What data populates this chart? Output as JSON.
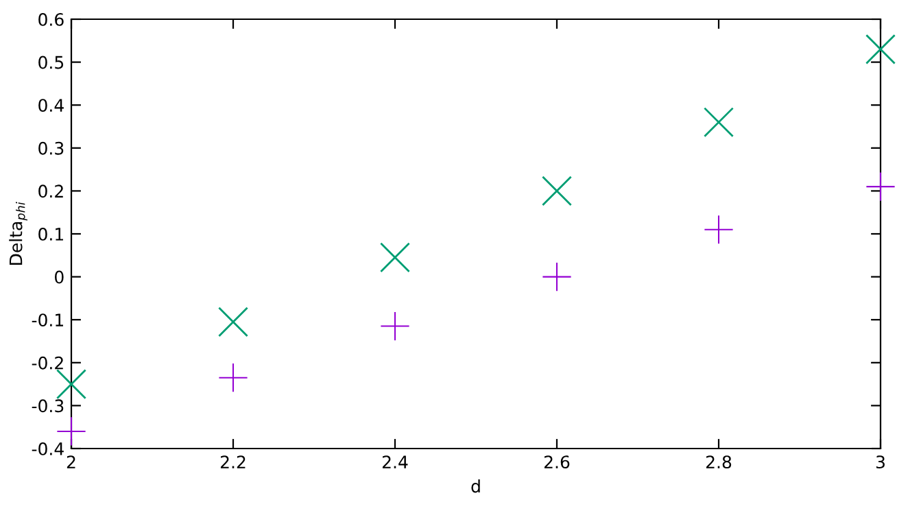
{
  "chart_data": {
    "type": "scatter",
    "xlabel": "d",
    "ylabel": "Delta$_{phi}$",
    "x": [
      2,
      2.2,
      2.4,
      2.6,
      2.8,
      3
    ],
    "series": [
      {
        "color": "#9400d3",
        "values": [
          -0.36,
          -0.235,
          -0.115,
          0.0,
          0.11,
          0.21
        ]
      },
      {
        "color": "#009e73",
        "marker": "cross",
        "values": [
          -0.25,
          -0.105,
          0.045,
          0.2,
          0.36,
          0.53
        ]
      }
    ],
    "xlim": [
      2,
      3
    ],
    "xticks": [
      2,
      2.2,
      2.4,
      2.6,
      2.8,
      3
    ],
    "ylim": [
      -0.4,
      0.6
    ],
    "yticks": [
      -0.4,
      -0.3,
      -0.2,
      -0.1,
      0,
      0.1,
      0.2,
      0.3,
      0.4,
      0.5,
      0.6
    ],
    "grid": false,
    "legend": false
  }
}
